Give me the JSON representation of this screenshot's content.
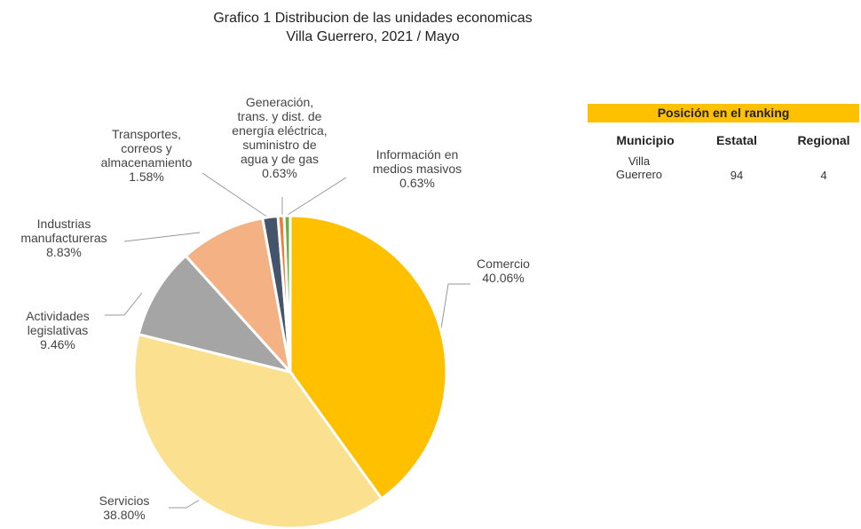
{
  "chart_data": {
    "type": "pie",
    "title": [
      "Grafico 1 Distribucion de las unidades economicas",
      "Villa Guerrero, 2021 / Mayo"
    ],
    "categories": [
      "Comercio",
      "Servicios",
      "Actividades\nlegislativas",
      "Industrias\nmanufactureras",
      "Transportes,\ncorreos y\nalmacenamiento",
      "Generación,\ntrans. y dist. de\nenergía eléctrica,\nsuministro de\nagua y de gas",
      "Información en\nmedios masivos"
    ],
    "values": [
      40.06,
      38.8,
      9.46,
      8.83,
      1.58,
      0.63,
      0.63
    ],
    "value_labels": [
      "40.06%",
      "38.80%",
      "9.46%",
      "8.83%",
      "1.58%",
      "0.63%",
      "0.63%"
    ],
    "colors": [
      "#ffc000",
      "#fbe08f",
      "#a5a5a5",
      "#f4b183",
      "#44546a",
      "#ed7d31",
      "#70ad47"
    ]
  },
  "table": {
    "title": "Posición en el ranking",
    "header": [
      "Municipio",
      "Estatal",
      "Regional"
    ],
    "rows": [
      [
        "Villa\nGuerrero",
        94,
        4
      ]
    ]
  }
}
